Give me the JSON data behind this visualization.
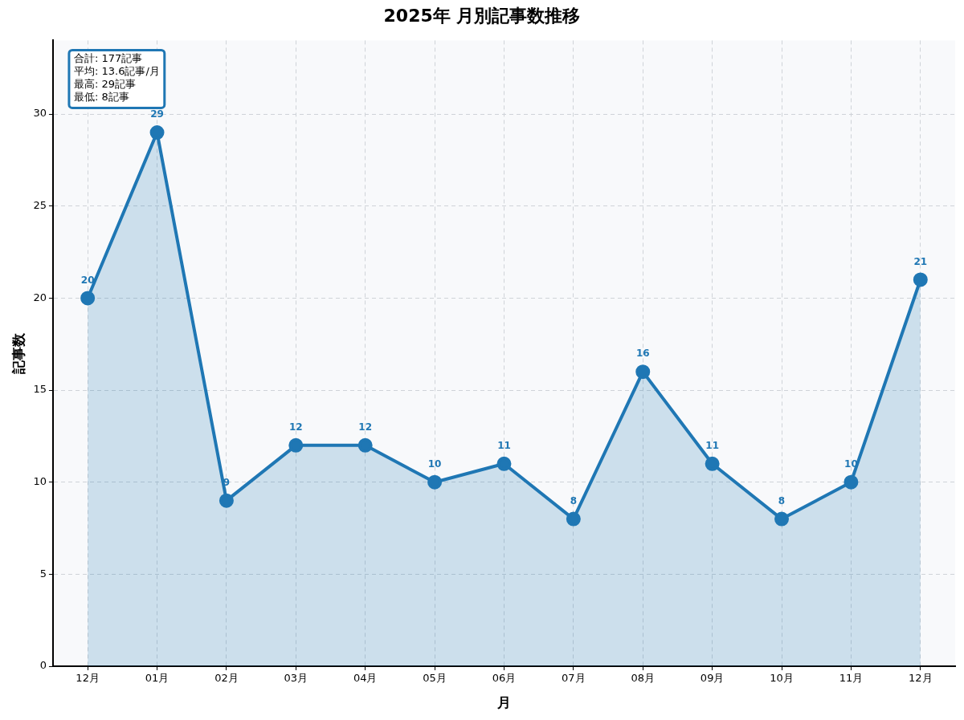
{
  "chart_data": {
    "type": "area",
    "title": "2025年 月別記事数推移",
    "xlabel": "月",
    "ylabel": "記事数",
    "categories": [
      "12月",
      "01月",
      "02月",
      "03月",
      "04月",
      "05月",
      "06月",
      "07月",
      "08月",
      "09月",
      "10月",
      "11月",
      "12月"
    ],
    "series": [
      {
        "color": "#1f77b4",
        "values": [
          20,
          29,
          9,
          12,
          12,
          10,
          11,
          8,
          16,
          11,
          8,
          10,
          21
        ]
      }
    ],
    "ylim": [
      0,
      34
    ],
    "yticks": [
      0,
      5,
      10,
      15,
      20,
      25,
      30
    ],
    "grid": true,
    "data_labels": true,
    "marker": "circle",
    "line_style": "solid",
    "annotations": [
      "合計: 177記事",
      "平均: 13.6記事/月",
      "最高: 29記事",
      "最低: 8記事"
    ]
  }
}
